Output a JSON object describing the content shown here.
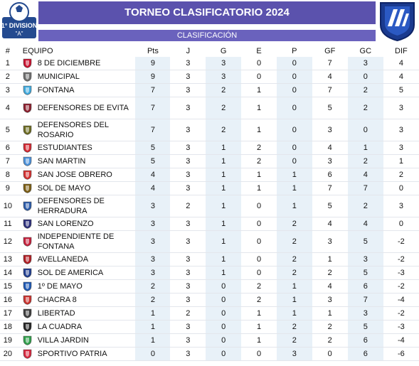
{
  "header": {
    "title": "TORNEO CLASIFICATORIO 2024",
    "subtitle": "CLASIFICACIÓN",
    "badge_line1": "1° DIVISION",
    "badge_line2": "\"A\"",
    "colors": {
      "title_bg": "#5b52ad",
      "subtitle_bg": "#6a62bd",
      "zebra": "#e8f1f8"
    }
  },
  "table": {
    "columns": [
      "#",
      "EQUIPO",
      "Pts",
      "J",
      "G",
      "E",
      "P",
      "GF",
      "GC",
      "DIF"
    ],
    "rows": [
      {
        "pos": "1",
        "team": "8 DE DICIEMBRE",
        "pts": "9",
        "j": "3",
        "g": "3",
        "e": "0",
        "p": "0",
        "gf": "7",
        "gc": "3",
        "dif": "4"
      },
      {
        "pos": "2",
        "team": "MUNICIPAL",
        "pts": "9",
        "j": "3",
        "g": "3",
        "e": "0",
        "p": "0",
        "gf": "4",
        "gc": "0",
        "dif": "4"
      },
      {
        "pos": "3",
        "team": "FONTANA",
        "pts": "7",
        "j": "3",
        "g": "2",
        "e": "1",
        "p": "0",
        "gf": "7",
        "gc": "2",
        "dif": "5"
      },
      {
        "pos": "4",
        "team": "DEFENSORES DE EVITA",
        "pts": "7",
        "j": "3",
        "g": "2",
        "e": "1",
        "p": "0",
        "gf": "5",
        "gc": "2",
        "dif": "3"
      },
      {
        "pos": "5",
        "team": "DEFENSORES DEL ROSARIO",
        "pts": "7",
        "j": "3",
        "g": "2",
        "e": "1",
        "p": "0",
        "gf": "3",
        "gc": "0",
        "dif": "3"
      },
      {
        "pos": "6",
        "team": "ESTUDIANTES",
        "pts": "5",
        "j": "3",
        "g": "1",
        "e": "2",
        "p": "0",
        "gf": "4",
        "gc": "1",
        "dif": "3"
      },
      {
        "pos": "7",
        "team": "SAN MARTIN",
        "pts": "5",
        "j": "3",
        "g": "1",
        "e": "2",
        "p": "0",
        "gf": "3",
        "gc": "2",
        "dif": "1"
      },
      {
        "pos": "8",
        "team": "SAN JOSE OBRERO",
        "pts": "4",
        "j": "3",
        "g": "1",
        "e": "1",
        "p": "1",
        "gf": "6",
        "gc": "4",
        "dif": "2"
      },
      {
        "pos": "9",
        "team": "SOL DE MAYO",
        "pts": "4",
        "j": "3",
        "g": "1",
        "e": "1",
        "p": "1",
        "gf": "7",
        "gc": "7",
        "dif": "0"
      },
      {
        "pos": "10",
        "team": "DEFENSORES DE HERRADURA",
        "pts": "3",
        "j": "2",
        "g": "1",
        "e": "0",
        "p": "1",
        "gf": "5",
        "gc": "2",
        "dif": "3"
      },
      {
        "pos": "11",
        "team": "SAN LORENZO",
        "pts": "3",
        "j": "3",
        "g": "1",
        "e": "0",
        "p": "2",
        "gf": "4",
        "gc": "4",
        "dif": "0"
      },
      {
        "pos": "12",
        "team": "INDEPENDIENTE DE FONTANA",
        "pts": "3",
        "j": "3",
        "g": "1",
        "e": "0",
        "p": "2",
        "gf": "3",
        "gc": "5",
        "dif": "-2"
      },
      {
        "pos": "13",
        "team": "AVELLANEDA",
        "pts": "3",
        "j": "3",
        "g": "1",
        "e": "0",
        "p": "2",
        "gf": "1",
        "gc": "3",
        "dif": "-2"
      },
      {
        "pos": "14",
        "team": "SOL DE AMERICA",
        "pts": "3",
        "j": "3",
        "g": "1",
        "e": "0",
        "p": "2",
        "gf": "2",
        "gc": "5",
        "dif": "-3"
      },
      {
        "pos": "15",
        "team": "1º DE MAYO",
        "pts": "2",
        "j": "3",
        "g": "0",
        "e": "2",
        "p": "1",
        "gf": "4",
        "gc": "6",
        "dif": "-2"
      },
      {
        "pos": "16",
        "team": "CHACRA 8",
        "pts": "2",
        "j": "3",
        "g": "0",
        "e": "2",
        "p": "1",
        "gf": "3",
        "gc": "7",
        "dif": "-4"
      },
      {
        "pos": "17",
        "team": "LIBERTAD",
        "pts": "1",
        "j": "2",
        "g": "0",
        "e": "1",
        "p": "1",
        "gf": "1",
        "gc": "3",
        "dif": "-2"
      },
      {
        "pos": "18",
        "team": "LA CUADRA",
        "pts": "1",
        "j": "3",
        "g": "0",
        "e": "1",
        "p": "2",
        "gf": "2",
        "gc": "5",
        "dif": "-3"
      },
      {
        "pos": "19",
        "team": "VILLA JARDIN",
        "pts": "1",
        "j": "3",
        "g": "0",
        "e": "1",
        "p": "2",
        "gf": "2",
        "gc": "6",
        "dif": "-4"
      },
      {
        "pos": "20",
        "team": "SPORTIVO PATRIA",
        "pts": "0",
        "j": "3",
        "g": "0",
        "e": "0",
        "p": "3",
        "gf": "0",
        "gc": "6",
        "dif": "-6"
      }
    ],
    "crest_colors": [
      "#c8102e",
      "#6d6d6d",
      "#3fa9dd",
      "#8b1d2c",
      "#6b6a20",
      "#d22630",
      "#4a90d9",
      "#d32f2f",
      "#7a5c12",
      "#2a5aa8",
      "#2b2e7a",
      "#c41e3a",
      "#b01c22",
      "#1f3d8f",
      "#1c57b3",
      "#c9302c",
      "#3b3b3b",
      "#222222",
      "#2e9e4a",
      "#d7263d"
    ]
  }
}
